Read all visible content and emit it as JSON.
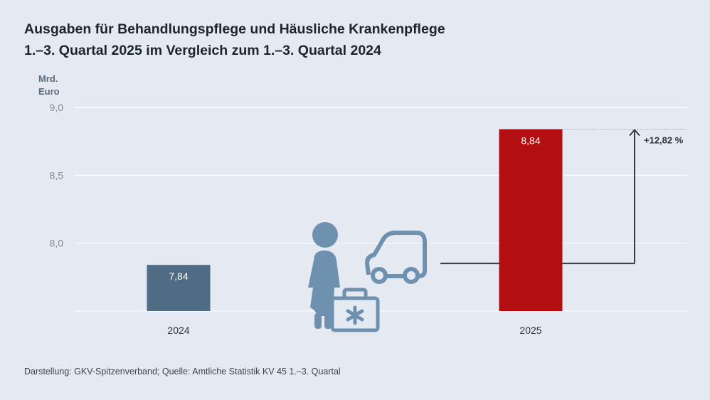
{
  "title_line1": "Ausgaben für Behandlungspflege und Häusliche Krankenpflege",
  "title_line2": "1.–3. Quartal 2025 im Vergleich zum 1.–3. Quartal 2024",
  "unit_line1": "Mrd.",
  "unit_line2": "Euro",
  "source": "Darstellung: GKV-Spitzenverband; Quelle: Amtliche Statistik KV 45 1.–3. Quartal",
  "colors": {
    "background": "#e4e9f2",
    "bar_2024": "#506b84",
    "bar_2025": "#b30f12",
    "icon": "#6e91b0",
    "arrow": "#2f3e4f"
  },
  "icons": [
    "nurse-icon",
    "medical-bag-icon",
    "car-icon"
  ],
  "chart_data": {
    "type": "bar",
    "title": "Ausgaben für Behandlungspflege und Häusliche Krankenpflege 1.–3. Quartal 2025 im Vergleich zum 1.–3. Quartal 2024",
    "ylabel": "Mrd. Euro",
    "xlabel": "",
    "categories": [
      "2024",
      "2025"
    ],
    "values": [
      7.84,
      8.84
    ],
    "value_labels": [
      "7,84",
      "8,84"
    ],
    "ylim": [
      7.5,
      9.0
    ],
    "yticks": [
      8.0,
      8.5,
      9.0
    ],
    "ytick_labels": [
      "8,0",
      "8,5",
      "9,0"
    ],
    "grid": true,
    "change_annotation": "+12,82 %"
  }
}
